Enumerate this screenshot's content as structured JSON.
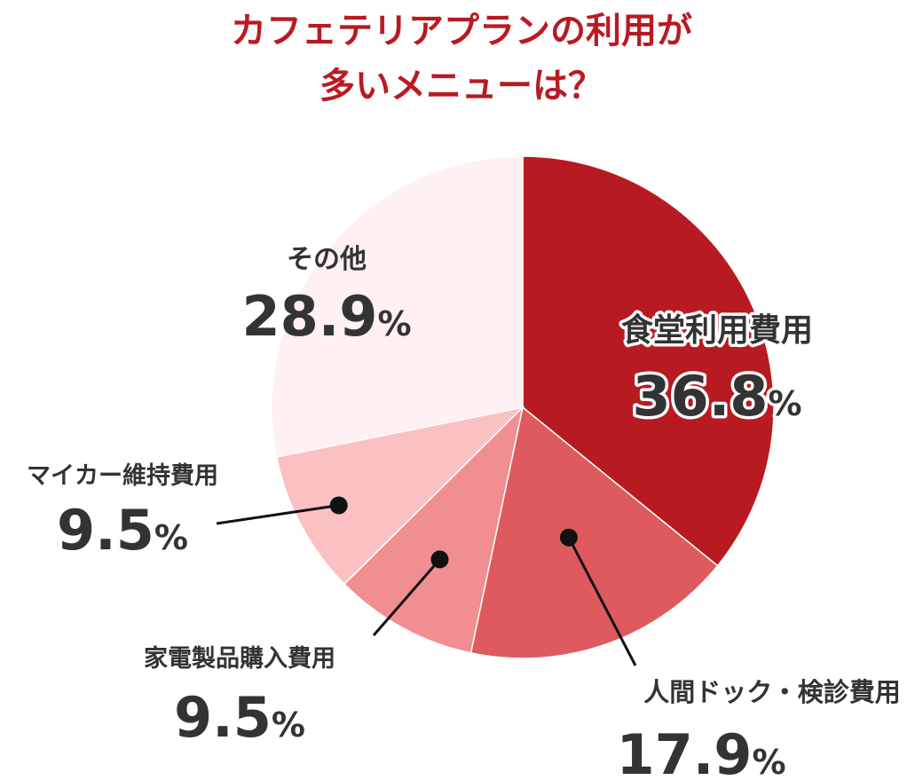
{
  "title_line1": "カフェテリアプランの利用が",
  "title_line2": "多いメニューは？",
  "chart_data": {
    "type": "pie",
    "title": "カフェテリアプランの利用が多いメニューは？",
    "unit": "%",
    "slices": [
      {
        "label": "食堂利用費用",
        "value": 36.8,
        "color": "#b81a22"
      },
      {
        "label": "人間ドック・検診費用",
        "value": 17.9,
        "color": "#df5a5e"
      },
      {
        "label": "家電製品購入費用",
        "value": 9.5,
        "color": "#f08e92"
      },
      {
        "label": "マイカー維持費用",
        "value": 9.5,
        "color": "#fbc1c2"
      },
      {
        "label": "その他",
        "value": 28.9,
        "color": "#fff0f1"
      }
    ]
  }
}
